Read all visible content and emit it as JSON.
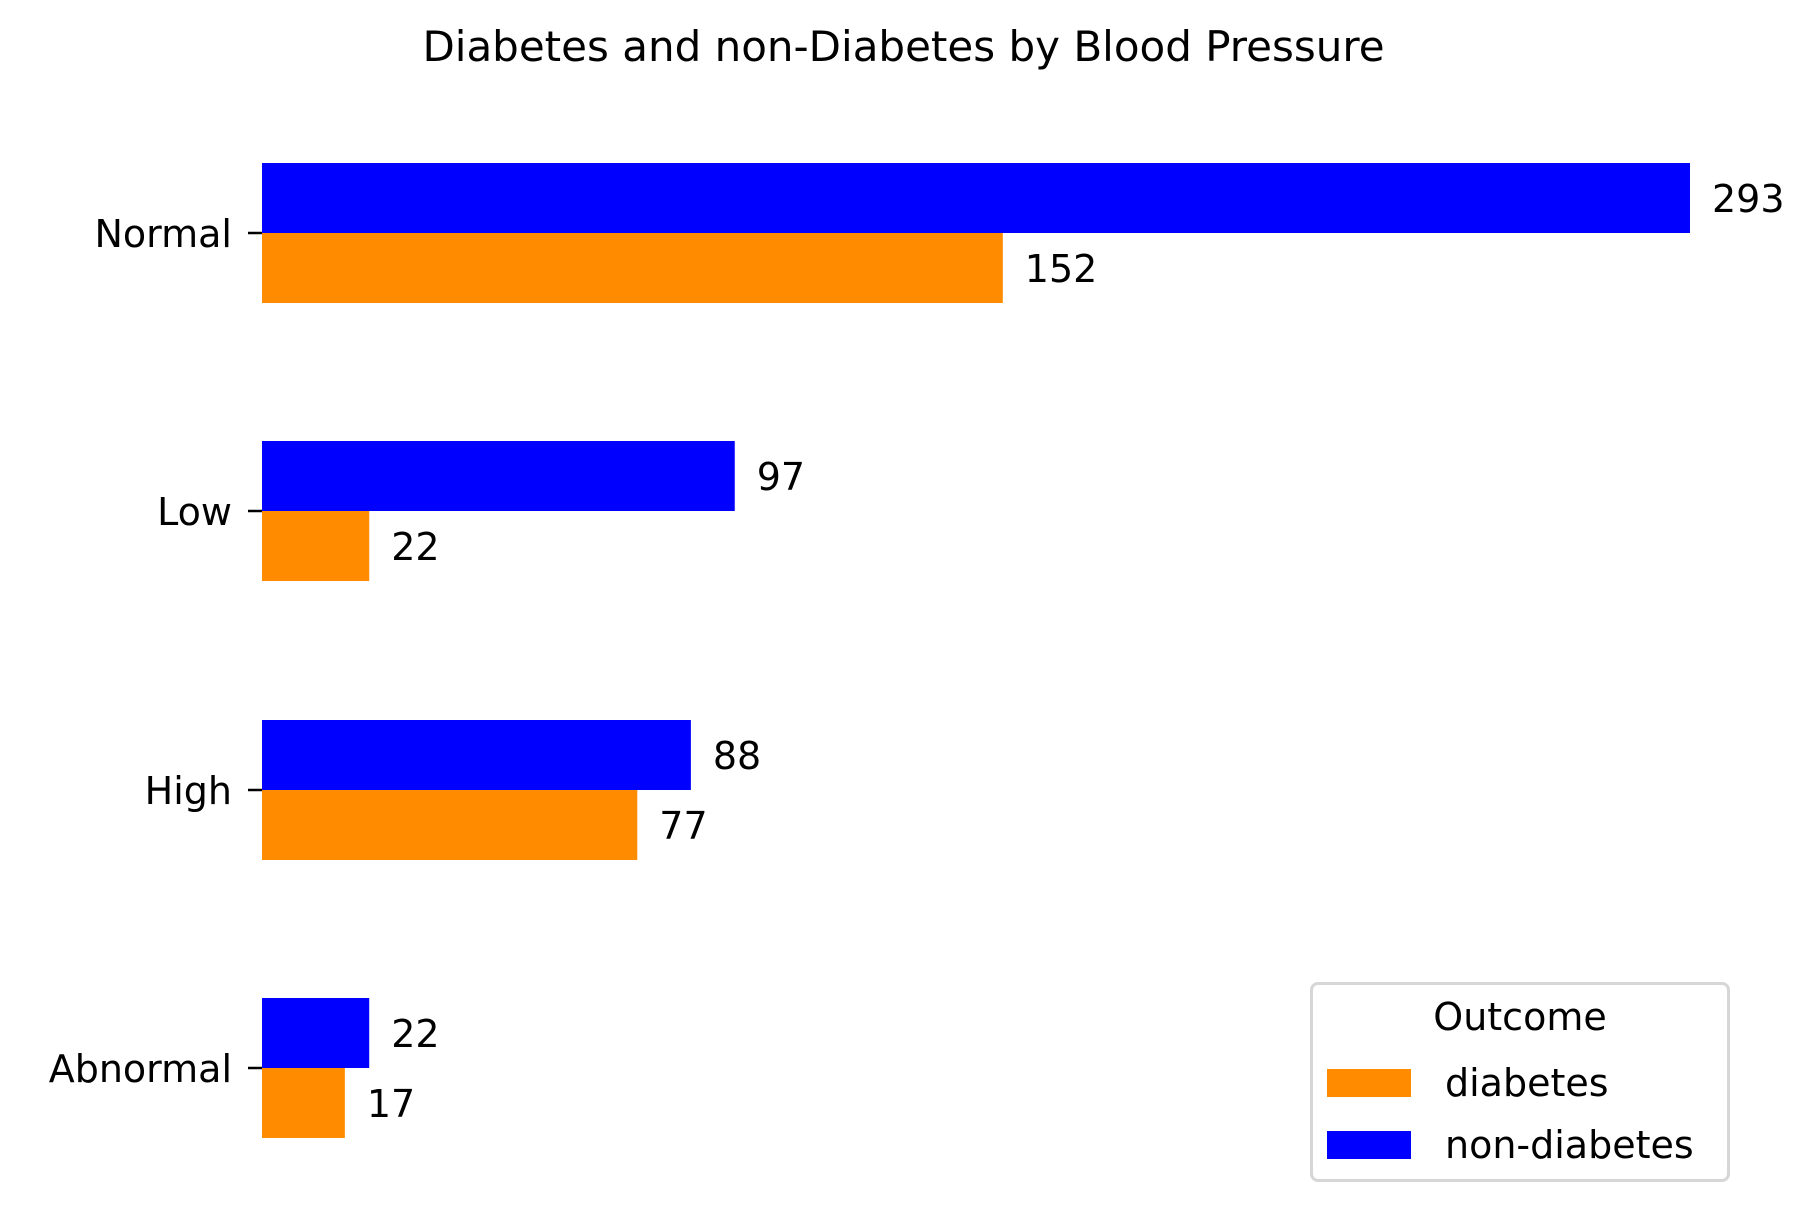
{
  "chart_data": {
    "type": "bar",
    "orientation": "horizontal",
    "title": "Diabetes and non-Diabetes by Blood Pressure",
    "categories": [
      "Normal",
      "Low",
      "High",
      "Abnormal"
    ],
    "series": [
      {
        "name": "non-diabetes",
        "color": "#0000ff",
        "values": [
          293,
          97,
          88,
          22
        ]
      },
      {
        "name": "diabetes",
        "color": "#ff8c00",
        "values": [
          152,
          22,
          77,
          17
        ]
      }
    ],
    "data_labels": true,
    "xlim": [
      0,
      293
    ],
    "grid": false,
    "legend": {
      "title": "Outcome",
      "placement": "bottom-right",
      "entries": [
        {
          "label": "diabetes",
          "color": "#ff8c00"
        },
        {
          "label": "non-diabetes",
          "color": "#0000ff"
        }
      ]
    }
  }
}
